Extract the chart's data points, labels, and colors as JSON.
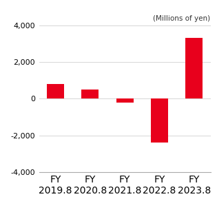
{
  "categories": [
    "FY\n2019.8",
    "FY\n2020.8",
    "FY\n2021.8",
    "FY\n2022.8",
    "FY\n2023.8"
  ],
  "values": [
    800,
    500,
    -230,
    -2400,
    3300
  ],
  "bar_color": "#e8001c",
  "ylim": [
    -4000,
    4000
  ],
  "yticks": [
    -4000,
    -2000,
    0,
    2000,
    4000
  ],
  "ylabel_unit": "(Millions of yen)",
  "background_color": "#ffffff",
  "bar_width": 0.5
}
